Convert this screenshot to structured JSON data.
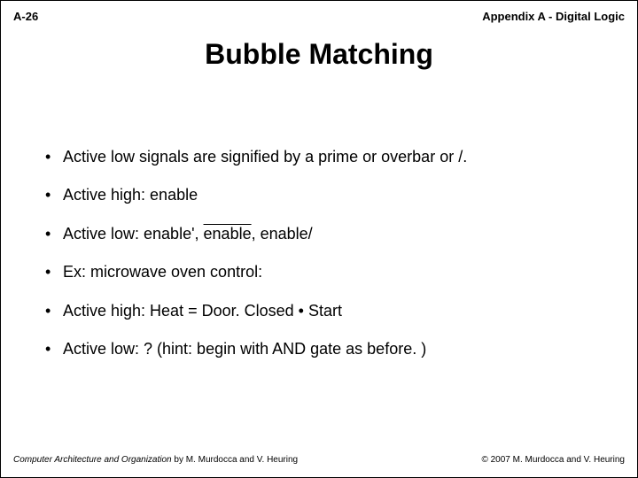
{
  "header": {
    "page_number": "A-26",
    "appendix_label": "Appendix A - Digital Logic"
  },
  "title": "Bubble Matching",
  "bullets": [
    {
      "text": "Active low signals are signified by a prime or overbar or /."
    },
    {
      "text": "Active high: enable"
    },
    {
      "prefix": "Active low: enable', ",
      "overbar": "enable",
      "suffix": ", enable/"
    },
    {
      "text": "Ex: microwave oven control:"
    },
    {
      "text": "Active high: Heat = Door. Closed • Start"
    },
    {
      "text": "Active low: ? (hint: begin with AND gate as before. )"
    }
  ],
  "footer": {
    "book_title": "Computer Architecture and Organization",
    "authors": " by M. Murdocca and V. Heuring",
    "copyright": "© 2007 M. Murdocca and V. Heuring"
  }
}
